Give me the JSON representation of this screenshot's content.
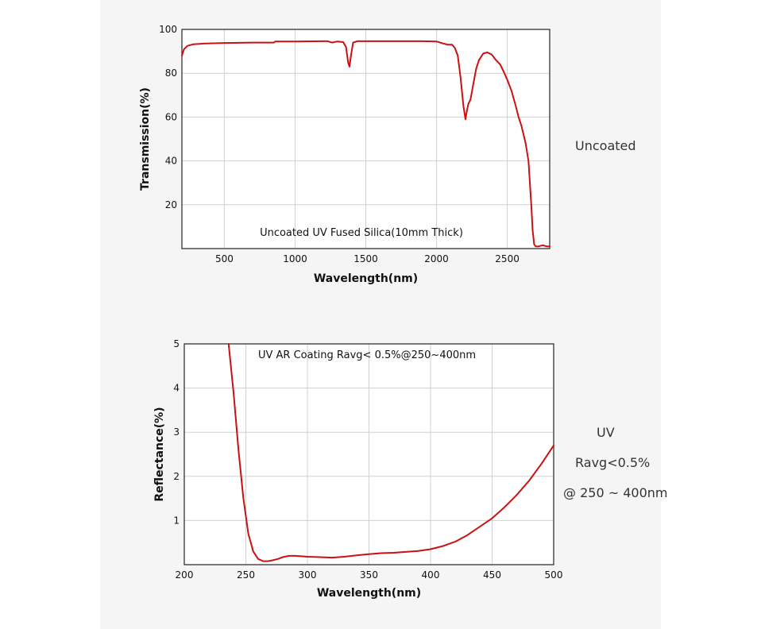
{
  "colors": {
    "curve": "#cc1010",
    "plot_bg": "#ffffff",
    "panel_bg": "#f5f5f6",
    "grid": "#d0d0d0",
    "axis": "#222222"
  },
  "side_labels": {
    "top": "Uncoated",
    "bottom": [
      "UV",
      "Ravg<0.5%",
      "@ 250 ~ 400nm"
    ]
  },
  "chart_data": [
    {
      "type": "line",
      "annotation": "Uncoated UV Fused Silica(10mm Thick)",
      "xlabel": "Wavelength(nm)",
      "ylabel": "Transmission(%)",
      "xlim": [
        200,
        2800
      ],
      "ylim": [
        0,
        100
      ],
      "xticks": [
        500,
        1000,
        1500,
        2000,
        2500
      ],
      "yticks": [
        20,
        40,
        60,
        80,
        100
      ],
      "grid": true,
      "series": [
        {
          "x": [
            200,
            215,
            240,
            280,
            350,
            500,
            700,
            850,
            860,
            1000,
            1200,
            1230,
            1260,
            1300,
            1340,
            1360,
            1375,
            1385,
            1395,
            1410,
            1440,
            1500,
            1700,
            1900,
            2000,
            2050,
            2080,
            2110,
            2130,
            2150,
            2170,
            2190,
            2205,
            2215,
            2225,
            2240,
            2260,
            2280,
            2300,
            2330,
            2360,
            2390,
            2420,
            2450,
            2480,
            2500,
            2530,
            2560,
            2580,
            2600,
            2615,
            2630,
            2650,
            2670,
            2680,
            2690,
            2700,
            2720,
            2750,
            2780,
            2800
          ],
          "y": [
            88,
            91,
            92.5,
            93.2,
            93.5,
            93.8,
            94,
            94,
            94.5,
            94.5,
            94.6,
            94.6,
            94,
            94.5,
            94.2,
            92,
            85,
            83,
            88,
            94,
            94.6,
            94.6,
            94.6,
            94.6,
            94.5,
            93.5,
            93,
            93,
            91.5,
            88,
            78,
            65,
            59,
            63,
            66,
            68,
            75,
            82,
            86,
            89,
            89.5,
            88.5,
            86,
            84,
            80,
            77,
            72,
            65,
            60,
            56,
            52,
            48,
            40,
            20,
            8,
            2,
            1,
            1,
            1.5,
            1,
            1
          ]
        }
      ]
    },
    {
      "type": "line",
      "annotation": "UV AR Coating Ravg< 0.5%@250~400nm",
      "xlabel": "Wavelength(nm)",
      "ylabel": "Reflectance(%)",
      "xlim": [
        200,
        500
      ],
      "ylim": [
        0,
        5
      ],
      "xticks": [
        200,
        250,
        300,
        350,
        400,
        450,
        500
      ],
      "yticks": [
        1,
        2,
        3,
        4,
        5
      ],
      "grid": true,
      "series": [
        {
          "x": [
            236,
            240,
            244,
            248,
            252,
            256,
            260,
            264,
            268,
            272,
            276,
            280,
            285,
            290,
            295,
            300,
            310,
            320,
            330,
            340,
            350,
            360,
            370,
            380,
            390,
            400,
            410,
            420,
            430,
            440,
            450,
            460,
            470,
            480,
            490,
            500
          ],
          "y": [
            5,
            3.9,
            2.6,
            1.5,
            0.7,
            0.3,
            0.13,
            0.08,
            0.08,
            0.1,
            0.13,
            0.17,
            0.2,
            0.2,
            0.19,
            0.18,
            0.17,
            0.16,
            0.18,
            0.21,
            0.24,
            0.26,
            0.27,
            0.29,
            0.31,
            0.35,
            0.42,
            0.52,
            0.67,
            0.86,
            1.05,
            1.3,
            1.58,
            1.9,
            2.28,
            2.7
          ]
        }
      ]
    }
  ]
}
